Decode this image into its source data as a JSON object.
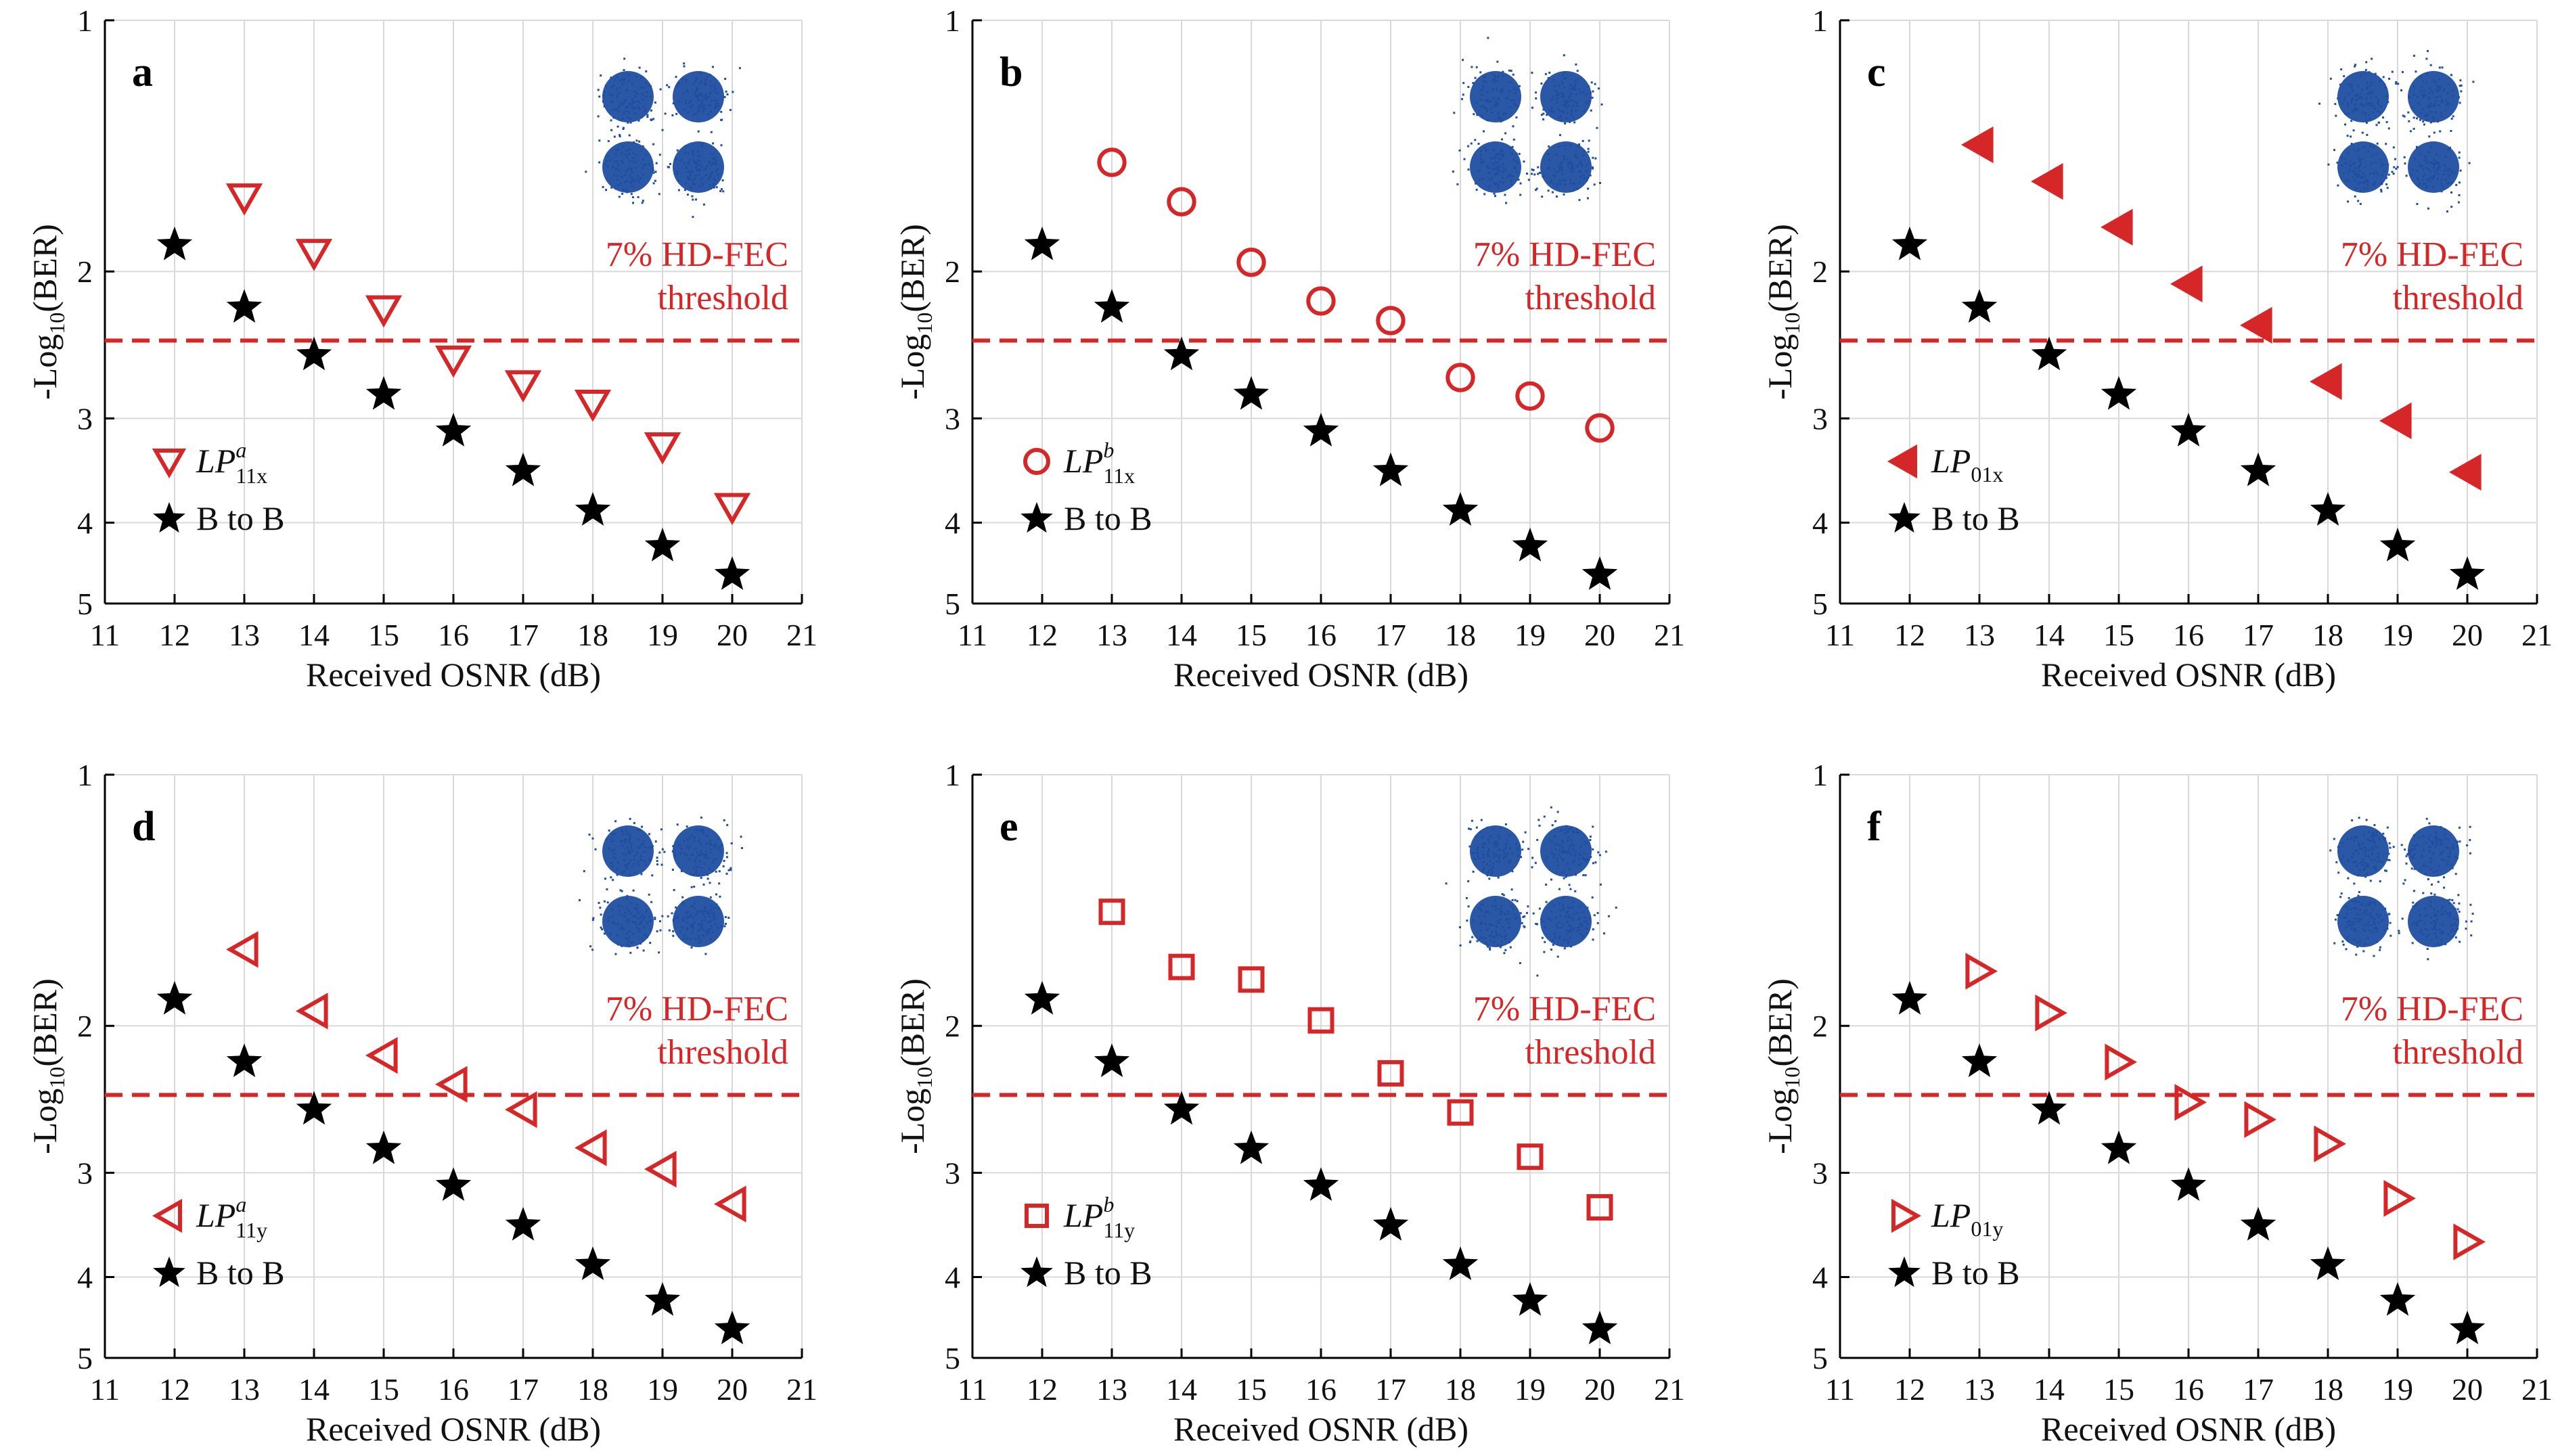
{
  "x_axis": {
    "label": "Received OSNR (dB)",
    "ticks": [
      "11",
      "12",
      "13",
      "14",
      "15",
      "16",
      "17",
      "18",
      "19",
      "20",
      "21"
    ],
    "range": [
      11,
      21
    ]
  },
  "y_axis": {
    "label_main": "-Log",
    "label_sub": "10",
    "label_tail": "(BER)",
    "ticks": [
      "1",
      "2",
      "3",
      "4",
      "5"
    ],
    "range": [
      1,
      5
    ],
    "inverted_log_scale": true
  },
  "threshold": {
    "line1": "7% HD-FEC",
    "line2": "threshold",
    "value": 2.42,
    "color": "#d62728"
  },
  "reference_series": {
    "name": "B to B",
    "color": "#000000",
    "x": [
      12,
      13,
      14,
      15,
      16,
      17,
      18,
      19,
      20
    ],
    "y": [
      1.86,
      2.21,
      2.52,
      2.81,
      3.11,
      3.47,
      3.87,
      4.27,
      4.62
    ]
  },
  "constellation_color": "#1f4ea1",
  "chart_data": [
    {
      "type": "scatter",
      "panel": "a",
      "marker": "tri-down",
      "filled": false,
      "color": "#d62728",
      "legend": {
        "italic": "LP",
        "sup": "a",
        "sub": "11x"
      },
      "x": [
        13,
        14,
        15,
        16,
        17,
        18,
        19,
        20
      ],
      "y": [
        1.63,
        1.9,
        2.22,
        2.55,
        2.73,
        2.88,
        3.24,
        3.83
      ]
    },
    {
      "type": "scatter",
      "panel": "b",
      "marker": "circle",
      "filled": false,
      "color": "#d62728",
      "legend": {
        "italic": "LP",
        "sup": "b",
        "sub": "11x"
      },
      "x": [
        13,
        14,
        15,
        16,
        17,
        18,
        19,
        20
      ],
      "y": [
        1.48,
        1.65,
        1.95,
        2.17,
        2.29,
        2.68,
        2.82,
        3.08
      ]
    },
    {
      "type": "scatter",
      "panel": "c",
      "marker": "tri-left",
      "filled": true,
      "color": "#d62728",
      "legend": {
        "italic": "LP",
        "sup": "",
        "sub": "01x"
      },
      "x": [
        13,
        14,
        15,
        16,
        17,
        18,
        19,
        20
      ],
      "y": [
        1.41,
        1.56,
        1.77,
        2.07,
        2.32,
        2.71,
        3.02,
        3.48
      ]
    },
    {
      "type": "scatter",
      "panel": "d",
      "marker": "tri-left",
      "filled": false,
      "color": "#d62728",
      "legend": {
        "italic": "LP",
        "sup": "a",
        "sub": "11y"
      },
      "x": [
        13,
        14,
        15,
        16,
        17,
        18,
        19,
        20
      ],
      "y": [
        1.62,
        1.92,
        2.17,
        2.35,
        2.52,
        2.8,
        2.97,
        3.27
      ]
    },
    {
      "type": "scatter",
      "panel": "e",
      "marker": "square",
      "filled": false,
      "color": "#d62728",
      "legend": {
        "italic": "LP",
        "sup": "b",
        "sub": "11y"
      },
      "x": [
        13,
        14,
        15,
        16,
        17,
        18,
        19,
        20
      ],
      "y": [
        1.46,
        1.7,
        1.76,
        1.97,
        2.28,
        2.54,
        2.87,
        3.3
      ]
    },
    {
      "type": "scatter",
      "panel": "f",
      "marker": "tri-right",
      "filled": false,
      "color": "#d62728",
      "legend": {
        "italic": "LP",
        "sup": "",
        "sub": "01y"
      },
      "x": [
        13,
        14,
        15,
        16,
        17,
        18,
        19,
        20
      ],
      "y": [
        1.72,
        1.93,
        2.21,
        2.47,
        2.59,
        2.77,
        3.22,
        3.63
      ]
    }
  ]
}
